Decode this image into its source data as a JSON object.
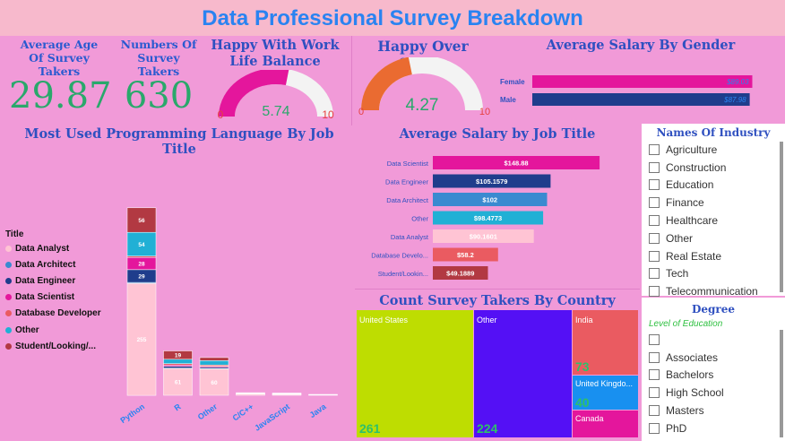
{
  "header": {
    "title": "Data Professional Survey Breakdown"
  },
  "kpi": {
    "age": {
      "label": "Average Age Of Survey Takers",
      "value": "29.87"
    },
    "count": {
      "label": "Numbers Of Survey Takers",
      "value": "630"
    }
  },
  "gauge_worklife": {
    "title": "Happy With Work Life Balance",
    "value": "5.74",
    "min": "0",
    "max": "10",
    "fraction": 0.574,
    "color": "#e4169c"
  },
  "gauge_salary": {
    "title": "Happy Over Salary",
    "value": "4.27",
    "min": "0",
    "max": "10",
    "fraction": 0.427,
    "color": "#ea6b31"
  },
  "gender_chart": {
    "title": "Average Salary By Gender",
    "bars": [
      {
        "label": "Female",
        "value": 89.03,
        "text": "$89.03",
        "color": "#e4169c"
      },
      {
        "label": "Male",
        "value": 87.98,
        "text": "$87.98",
        "color": "#1f3d8c"
      }
    ]
  },
  "lang_chart": {
    "title": "Most Used Programming Language By Job Title",
    "legend_title": "Title",
    "legend": [
      {
        "name": "Data Analyst",
        "color": "#ffc4d4"
      },
      {
        "name": "Data Architect",
        "color": "#3a8ad0"
      },
      {
        "name": "Data Engineer",
        "color": "#1f3d8c"
      },
      {
        "name": "Data Scientist",
        "color": "#e4169c"
      },
      {
        "name": "Database Developer",
        "color": "#ea5b61"
      },
      {
        "name": "Other",
        "color": "#21b0d5"
      },
      {
        "name": "Student/Looking/...",
        "color": "#b23942"
      }
    ],
    "categories": [
      "Python",
      "R",
      "Other",
      "C/C++",
      "JavaScript",
      "Java"
    ]
  },
  "chart_data": [
    {
      "type": "bar",
      "title": "Most Used Programming Language By Job Title",
      "stacked": true,
      "categories": [
        "Python",
        "R",
        "Other",
        "C/C++",
        "JavaScript",
        "Java"
      ],
      "series": [
        {
          "name": "Data Analyst",
          "values": [
            255,
            61,
            60,
            3,
            2,
            1
          ]
        },
        {
          "name": "Data Architect",
          "values": [
            2,
            1,
            1,
            0,
            0,
            0
          ]
        },
        {
          "name": "Data Engineer",
          "values": [
            29,
            4,
            3,
            1,
            1,
            0
          ]
        },
        {
          "name": "Data Scientist",
          "values": [
            28,
            3,
            2,
            0,
            0,
            0
          ]
        },
        {
          "name": "Database Developer",
          "values": [
            3,
            3,
            3,
            0,
            0,
            0
          ]
        },
        {
          "name": "Other",
          "values": [
            54,
            10,
            10,
            1,
            1,
            1
          ]
        },
        {
          "name": "Student/Looking/...",
          "values": [
            56,
            19,
            7,
            1,
            1,
            0
          ]
        }
      ],
      "data_labels": {
        "Python": [
          "255",
          "29",
          "28",
          "54",
          "56"
        ],
        "R": [
          "61",
          "19"
        ],
        "Other": [
          "60"
        ]
      },
      "ylim": [
        0,
        430
      ],
      "legend_position": "left"
    },
    {
      "type": "bar",
      "orientation": "horizontal",
      "title": "Average Salary by Job Title",
      "categories": [
        "Data Scientist",
        "Data Engineer",
        "Data Architect",
        "Other",
        "Data Analyst",
        "Database Develo...",
        "Student/Lookin..."
      ],
      "values": [
        148.88,
        105.1579,
        102,
        98.4773,
        90.1601,
        58.2,
        49.1889
      ],
      "labels": [
        "$148.88",
        "$105.1579",
        "$102",
        "$98.4773",
        "$90.1601",
        "$58.2",
        "$49.1889"
      ],
      "colors": [
        "#e4169c",
        "#1f3d8c",
        "#3a8ad0",
        "#21b0d5",
        "#ffc4d4",
        "#ea5b61",
        "#b23942"
      ],
      "label_colors": [
        "#ffffff",
        "#ffffff",
        "#ffffff",
        "#ffffff",
        "#ffffff",
        "#ffffff",
        "#ffffff"
      ],
      "xlim": [
        0,
        160
      ]
    },
    {
      "type": "bar",
      "orientation": "horizontal",
      "title": "Average Salary By Gender",
      "categories": [
        "Female",
        "Male"
      ],
      "values": [
        89.03,
        87.98
      ],
      "xlim": [
        0,
        95
      ]
    },
    {
      "type": "treemap",
      "title": "Count Survey Takers By Country",
      "categories": [
        "United States",
        "Other",
        "India",
        "United Kingdo...",
        "Canada"
      ],
      "values": [
        261,
        224,
        73,
        40,
        32
      ]
    }
  ],
  "job_chart": {
    "title": "Average Salary by Job Title"
  },
  "treemap": {
    "title": "Count Survey Takers By Country",
    "cells": [
      {
        "label": "United States",
        "value": "261",
        "color": "#bedd01"
      },
      {
        "label": "Other",
        "value": "224",
        "color": "#5410f5"
      },
      {
        "label": "India",
        "value": "73",
        "color": "#ea5b61"
      },
      {
        "label": "United Kingdo...",
        "value": "40",
        "color": "#1890f0"
      },
      {
        "label": "Canada",
        "value": "",
        "color": "#e4169c"
      }
    ]
  },
  "industry_slicer": {
    "title": "Names Of Industry",
    "items": [
      "Agriculture",
      "Construction",
      "Education",
      "Finance",
      "Healthcare",
      "Other",
      "Real Estate",
      "Tech",
      "Telecommunication"
    ]
  },
  "degree_slicer": {
    "title": "Degree",
    "subtitle": "Level of Education",
    "items": [
      "",
      "Associates",
      "Bachelors",
      "High School",
      "Masters",
      "PhD"
    ]
  }
}
